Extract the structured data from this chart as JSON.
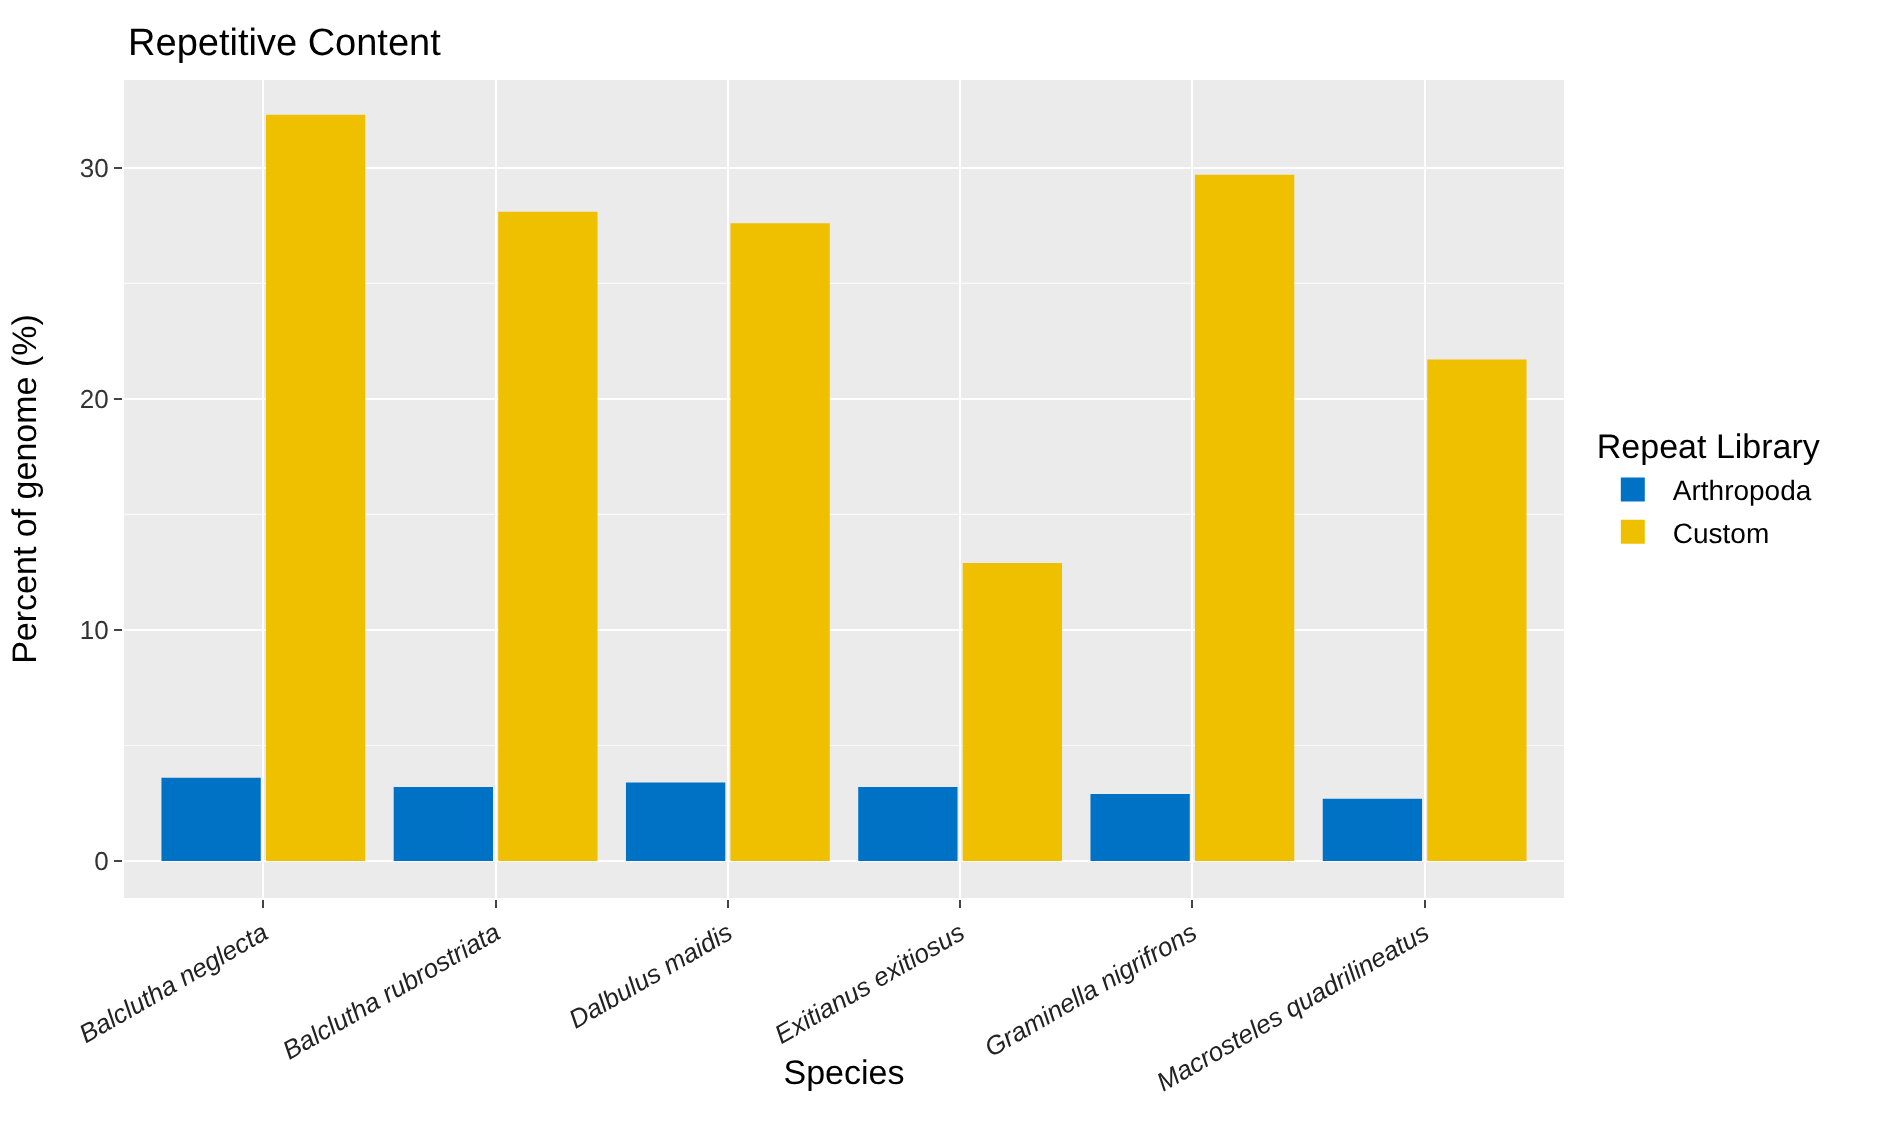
{
  "chart_data": {
    "type": "bar",
    "title": "Repetitive Content",
    "xlabel": "Species",
    "ylabel": "Percent of genome (%)",
    "legend_title": "Repeat Library",
    "categories": [
      "Balclutha neglecta",
      "Balclutha rubrostriata",
      "Dalbulus maidis",
      "Exitianus exitiosus",
      "Graminella nigrifrons",
      "Macrosteles quadrilineatus"
    ],
    "series": [
      {
        "name": "Arthropoda",
        "color": "#0072c6",
        "values": [
          3.6,
          3.2,
          3.4,
          3.2,
          2.9,
          2.7
        ]
      },
      {
        "name": "Custom",
        "color": "#efc000",
        "values": [
          32.3,
          28.1,
          27.6,
          12.9,
          29.7,
          21.7
        ]
      }
    ],
    "ylim": [
      -1.6,
      33.8
    ],
    "yticks": [
      0,
      {
        "value": 5,
        "label": null
      },
      10,
      {
        "value": 15,
        "label": null
      },
      20,
      {
        "value": 25,
        "label": null
      },
      30
    ],
    "grid": true,
    "legend": "right"
  }
}
